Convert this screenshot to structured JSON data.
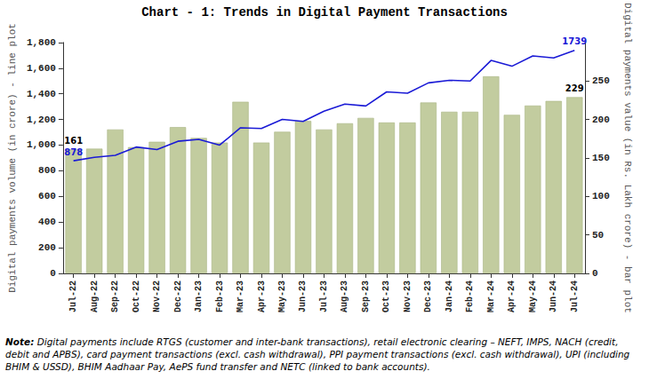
{
  "chart_data": {
    "type": "bar_line",
    "title": "Chart - 1: Trends in Digital Payment Transactions",
    "y_label": "Digital payments volume (in crore) - line plot",
    "y2_label": "Digital payments value (in Rs. Lakh crore) - bar plot",
    "note": {
      "label": "Note:",
      "text": "Digital payments include RTGS (customer and inter-bank transactions), retail electronic clearing – NEFT, IMPS, NACH (credit, debit and APBS), card payment transactions (excl. cash withdrawal), PPI payment transactions (excl. cash withdrawal), UPI (including BHIM & USSD), BHIM Aadhaar Pay, AePS fund transfer and NETC (linked to bank accounts)."
    },
    "categories": [
      "Jul-22",
      "Aug-22",
      "Sep-22",
      "Oct-22",
      "Nov-22",
      "Dec-22",
      "Jan-23",
      "Feb-23",
      "Mar-23",
      "Apr-23",
      "May-23",
      "Jun-23",
      "Jul-23",
      "Aug-23",
      "Sep-23",
      "Oct-23",
      "Nov-23",
      "Dec-23",
      "Jan-24",
      "Feb-24",
      "Mar-24",
      "Apr-24",
      "May-24",
      "Jun-24",
      "Jul-24"
    ],
    "series": [
      {
        "type": "bar",
        "axis": "y2",
        "color": "#c2cc9f",
        "values": [
          161,
          162,
          187,
          164,
          171,
          190,
          176,
          170,
          223,
          170,
          184,
          198,
          187,
          195,
          202,
          196,
          196,
          222,
          210,
          210,
          256,
          206,
          218,
          224,
          229
        ],
        "value_labels": [
          "161",
          null,
          null,
          null,
          null,
          null,
          null,
          null,
          null,
          null,
          null,
          null,
          null,
          null,
          null,
          null,
          null,
          null,
          null,
          null,
          null,
          null,
          null,
          null,
          "229"
        ]
      },
      {
        "type": "line",
        "axis": "y",
        "color": "#1a1ad6",
        "marker": "none",
        "line_style": "solid",
        "values": [
          878,
          905,
          920,
          985,
          965,
          1030,
          1045,
          1000,
          1135,
          1130,
          1200,
          1185,
          1265,
          1320,
          1305,
          1415,
          1405,
          1485,
          1505,
          1500,
          1660,
          1615,
          1695,
          1680,
          1739
        ],
        "value_labels": [
          "878",
          null,
          null,
          null,
          null,
          null,
          null,
          null,
          null,
          null,
          null,
          null,
          null,
          null,
          null,
          null,
          null,
          null,
          null,
          null,
          null,
          null,
          null,
          null,
          "1739"
        ]
      }
    ],
    "ylim": [
      0,
      1800
    ],
    "yticks": [
      0,
      200,
      400,
      600,
      800,
      1000,
      1200,
      1400,
      1600,
      1800
    ],
    "y2lim": [
      0,
      300
    ],
    "y2ticks": [
      0,
      50,
      100,
      150,
      200,
      250
    ],
    "grid": false,
    "data_labels": true
  }
}
